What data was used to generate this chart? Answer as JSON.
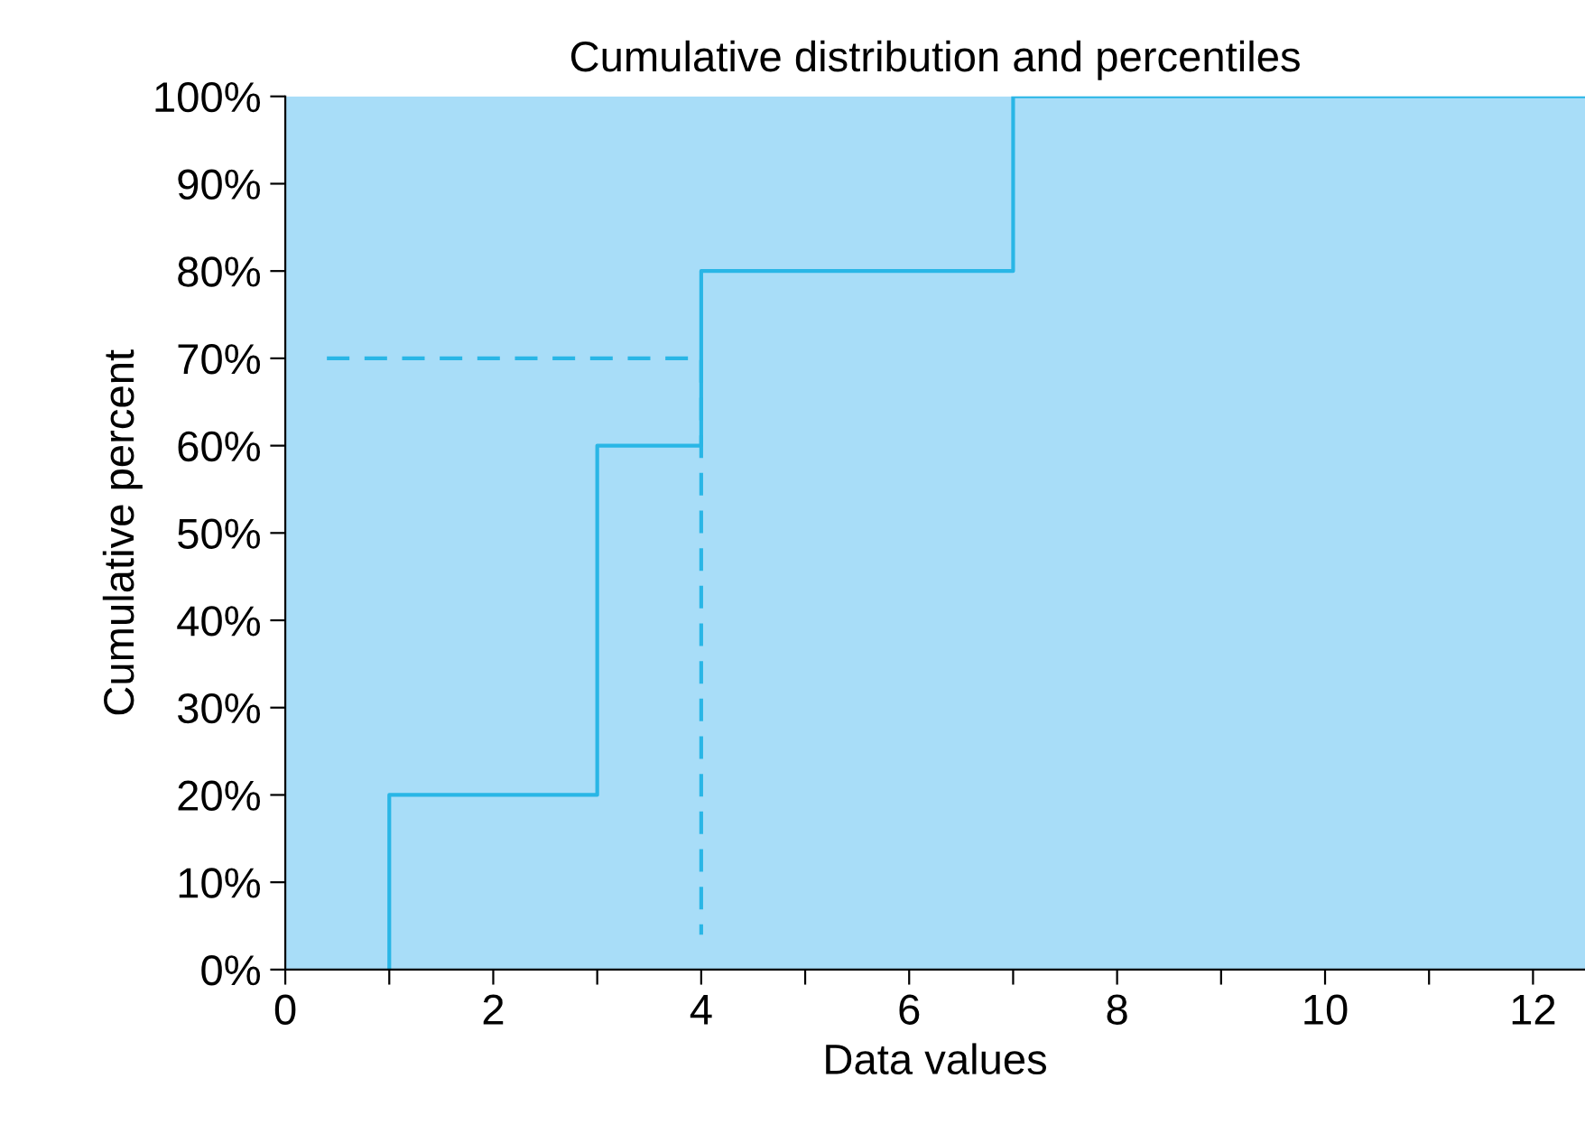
{
  "chart_data": {
    "type": "step",
    "title": "Cumulative distribution and percentiles",
    "xlabel": "Data values",
    "ylabel": "Cumulative percent",
    "series": [
      {
        "color": "#29b6e6",
        "line_style": "solid",
        "x": [
          1,
          1,
          3,
          4,
          7,
          12.5
        ],
        "values": [
          0,
          20,
          60,
          80,
          100,
          100
        ]
      },
      {
        "type": "line",
        "color": "#29b6e6",
        "line_style": "dashed",
        "x": [
          0.4,
          4,
          4
        ],
        "values": [
          70,
          70,
          4
        ]
      }
    ],
    "xlim": [
      0,
      12.5
    ],
    "ylim": [
      0,
      100
    ],
    "xticks": [
      0,
      {
        "value": 1,
        "label": null
      },
      2,
      {
        "value": 3,
        "label": null
      },
      4,
      {
        "value": 5,
        "label": null
      },
      6,
      {
        "value": 7,
        "label": null
      },
      8,
      {
        "value": 9,
        "label": null
      },
      10,
      {
        "value": 11,
        "label": null
      },
      12
    ],
    "yticks": [
      {
        "value": 0,
        "label": "0%"
      },
      {
        "value": 10,
        "label": "10%"
      },
      {
        "value": 20,
        "label": "20%"
      },
      {
        "value": 30,
        "label": "30%"
      },
      {
        "value": 40,
        "label": "40%"
      },
      {
        "value": 50,
        "label": "50%"
      },
      {
        "value": 60,
        "label": "60%"
      },
      {
        "value": 70,
        "label": "70%"
      },
      {
        "value": 80,
        "label": "80%"
      },
      {
        "value": 90,
        "label": "90%"
      },
      {
        "value": 100,
        "label": "100%"
      }
    ],
    "bands": [
      {
        "axis": "x",
        "from": 0,
        "to": 12.5,
        "color": "#a8ddf8"
      }
    ],
    "grid": false
  }
}
